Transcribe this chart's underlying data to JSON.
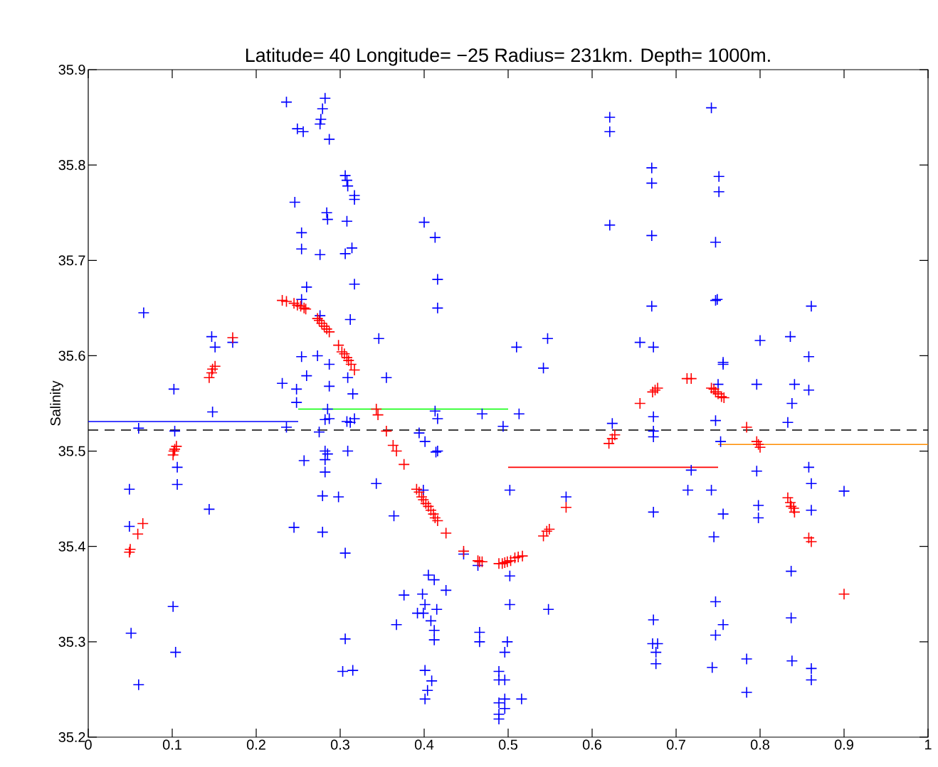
{
  "chart_data": {
    "type": "scatter",
    "title": "Latitude= 40 Longitude= −25 Radius= 231km. Depth= 1000m.",
    "ylabel": "Salinity",
    "xlim": [
      0,
      1
    ],
    "ylim": [
      35.2,
      35.9
    ],
    "xticks": [
      0,
      0.1,
      0.2,
      0.3,
      0.4,
      0.5,
      0.6,
      0.7,
      0.8,
      0.9,
      1
    ],
    "yticks": [
      35.2,
      35.3,
      35.4,
      35.5,
      35.6,
      35.7,
      35.8,
      35.9
    ],
    "marker": "cross",
    "grid": false,
    "ref_lines": [
      {
        "axis": "y",
        "value": 35.522,
        "color": "#000000",
        "line_style": "dashed"
      }
    ],
    "series": [
      {
        "color": "#0000ff",
        "x": [
          0.066,
          0.049,
          0.049,
          0.051,
          0.06,
          0.06,
          0.102,
          0.103,
          0.106,
          0.106,
          0.101,
          0.104,
          0.147,
          0.151,
          0.148,
          0.144,
          0.172,
          0.236,
          0.282,
          0.279,
          0.277,
          0.276,
          0.249,
          0.256,
          0.287,
          0.306,
          0.308,
          0.309,
          0.317,
          0.317,
          0.246,
          0.284,
          0.285,
          0.308,
          0.254,
          0.254,
          0.276,
          0.306,
          0.314,
          0.26,
          0.317,
          0.254,
          0.276,
          0.312,
          0.346,
          0.254,
          0.273,
          0.287,
          0.26,
          0.309,
          0.231,
          0.248,
          0.287,
          0.315,
          0.248,
          0.355,
          0.285,
          0.282,
          0.287,
          0.308,
          0.312,
          0.317,
          0.236,
          0.275,
          0.282,
          0.285,
          0.309,
          0.257,
          0.282,
          0.282,
          0.343,
          0.279,
          0.298,
          0.245,
          0.279,
          0.306,
          0.306,
          0.303,
          0.315,
          0.413,
          0.416,
          0.469,
          0.513,
          0.494,
          0.394,
          0.401,
          0.416,
          0.414,
          0.502,
          0.399,
          0.569,
          0.364,
          0.405,
          0.412,
          0.426,
          0.376,
          0.398,
          0.401,
          0.415,
          0.392,
          0.399,
          0.408,
          0.367,
          0.412,
          0.412,
          0.502,
          0.502,
          0.548,
          0.447,
          0.464,
          0.466,
          0.466,
          0.499,
          0.496,
          0.401,
          0.409,
          0.404,
          0.401,
          0.489,
          0.496,
          0.489,
          0.516,
          0.496,
          0.489,
          0.496,
          0.489,
          0.489,
          0.624,
          0.673,
          0.673,
          0.673,
          0.673,
          0.673,
          0.672,
          0.678,
          0.676,
          0.676,
          0.4,
          0.413,
          0.416,
          0.416,
          0.51,
          0.547,
          0.542,
          0.621,
          0.621,
          0.671,
          0.671,
          0.621,
          0.671,
          0.671,
          0.657,
          0.673,
          0.742,
          0.751,
          0.751,
          0.747,
          0.749,
          0.747,
          0.861,
          0.8,
          0.836,
          0.858,
          0.756,
          0.756,
          0.75,
          0.796,
          0.841,
          0.858,
          0.838,
          0.747,
          0.833,
          0.753,
          0.858,
          0.718,
          0.796,
          0.861,
          0.714,
          0.742,
          0.9,
          0.798,
          0.798,
          0.756,
          0.861,
          0.745,
          0.837,
          0.747,
          0.837,
          0.756,
          0.747,
          0.784,
          0.838,
          0.743,
          0.861,
          0.861,
          0.784
        ],
        "values": [
          35.645,
          35.46,
          35.421,
          35.309,
          35.255,
          35.524,
          35.565,
          35.521,
          35.483,
          35.465,
          35.337,
          35.289,
          35.62,
          35.609,
          35.541,
          35.439,
          35.614,
          35.866,
          35.87,
          35.859,
          35.848,
          35.843,
          35.838,
          35.835,
          35.827,
          35.789,
          35.784,
          35.778,
          35.768,
          35.764,
          35.761,
          35.75,
          35.743,
          35.741,
          35.729,
          35.712,
          35.706,
          35.707,
          35.713,
          35.672,
          35.675,
          35.659,
          35.642,
          35.638,
          35.618,
          35.599,
          35.6,
          35.591,
          35.579,
          35.577,
          35.571,
          35.565,
          35.568,
          35.56,
          35.551,
          35.577,
          35.544,
          35.533,
          35.534,
          35.531,
          35.53,
          35.534,
          35.525,
          35.52,
          35.5,
          35.497,
          35.5,
          35.49,
          35.491,
          35.478,
          35.466,
          35.453,
          35.452,
          35.42,
          35.415,
          35.393,
          35.303,
          35.269,
          35.27,
          35.542,
          35.534,
          35.539,
          35.539,
          35.526,
          35.519,
          35.51,
          35.5,
          35.499,
          35.459,
          35.459,
          35.452,
          35.432,
          35.37,
          35.365,
          35.354,
          35.349,
          35.35,
          35.339,
          35.334,
          35.33,
          35.33,
          35.322,
          35.318,
          35.312,
          35.302,
          35.369,
          35.339,
          35.334,
          35.392,
          35.38,
          35.31,
          35.3,
          35.3,
          35.289,
          35.27,
          35.259,
          35.249,
          35.24,
          35.269,
          35.26,
          35.26,
          35.24,
          35.24,
          35.236,
          35.23,
          35.224,
          35.219,
          35.529,
          35.536,
          35.521,
          35.515,
          35.436,
          35.323,
          35.298,
          35.298,
          35.289,
          35.277,
          35.74,
          35.724,
          35.68,
          35.65,
          35.609,
          35.618,
          35.587,
          35.85,
          35.835,
          35.797,
          35.781,
          35.737,
          35.726,
          35.652,
          35.614,
          35.609,
          35.86,
          35.788,
          35.772,
          35.719,
          35.659,
          35.658,
          35.652,
          35.616,
          35.62,
          35.599,
          35.593,
          35.591,
          35.57,
          35.57,
          35.57,
          35.564,
          35.55,
          35.532,
          35.53,
          35.51,
          35.483,
          35.48,
          35.479,
          35.466,
          35.459,
          35.459,
          35.458,
          35.443,
          35.43,
          35.434,
          35.438,
          35.41,
          35.374,
          35.342,
          35.325,
          35.318,
          35.307,
          35.282,
          35.28,
          35.273,
          35.272,
          35.26,
          35.247
        ]
      },
      {
        "color": "#ff0000",
        "x": [
          0.172,
          0.151,
          0.148,
          0.147,
          0.144,
          0.231,
          0.236,
          0.245,
          0.249,
          0.253,
          0.257,
          0.259,
          0.273,
          0.275,
          0.278,
          0.281,
          0.284,
          0.287,
          0.298,
          0.302,
          0.305,
          0.308,
          0.31,
          0.313,
          0.317,
          0.343,
          0.345,
          0.105,
          0.103,
          0.102,
          0.101,
          0.065,
          0.059,
          0.05,
          0.049,
          0.657,
          0.355,
          0.363,
          0.367,
          0.376,
          0.391,
          0.394,
          0.397,
          0.399,
          0.402,
          0.405,
          0.408,
          0.411,
          0.413,
          0.416,
          0.426,
          0.447,
          0.464,
          0.466,
          0.469,
          0.489,
          0.493,
          0.496,
          0.499,
          0.503,
          0.508,
          0.512,
          0.517,
          0.542,
          0.546,
          0.549,
          0.569,
          0.62,
          0.624,
          0.627,
          0.672,
          0.675,
          0.678,
          0.713,
          0.718,
          0.742,
          0.745,
          0.747,
          0.75,
          0.754,
          0.757,
          0.784,
          0.796,
          0.798,
          0.8,
          0.833,
          0.836,
          0.837,
          0.84,
          0.841,
          0.858,
          0.861,
          0.9
        ],
        "values": [
          35.619,
          35.589,
          35.586,
          35.582,
          35.577,
          35.658,
          35.657,
          35.655,
          35.653,
          35.652,
          35.65,
          35.649,
          35.639,
          35.637,
          35.634,
          35.631,
          35.628,
          35.625,
          35.611,
          35.604,
          35.602,
          35.598,
          35.595,
          35.591,
          35.585,
          35.544,
          35.538,
          35.505,
          35.502,
          35.5,
          35.496,
          35.424,
          35.413,
          35.397,
          35.394,
          35.55,
          35.521,
          35.506,
          35.5,
          35.486,
          35.46,
          35.457,
          35.452,
          35.449,
          35.445,
          35.442,
          35.438,
          35.434,
          35.43,
          35.427,
          35.414,
          35.395,
          35.385,
          35.384,
          35.384,
          35.382,
          35.382,
          35.383,
          35.384,
          35.385,
          35.388,
          35.389,
          35.39,
          35.411,
          35.416,
          35.418,
          35.441,
          35.508,
          35.513,
          35.517,
          35.562,
          35.564,
          35.566,
          35.576,
          35.576,
          35.566,
          35.565,
          35.562,
          35.56,
          35.557,
          35.556,
          35.525,
          35.51,
          35.507,
          35.504,
          35.451,
          35.446,
          35.442,
          35.44,
          35.436,
          35.409,
          35.405,
          35.35
        ]
      },
      {
        "type": "line",
        "marker": "none",
        "color": "#0000ff",
        "x": [
          0,
          0.25
        ],
        "values": [
          35.531,
          35.531
        ]
      },
      {
        "type": "line",
        "marker": "none",
        "color": "#00ff00",
        "x": [
          0.25,
          0.5
        ],
        "values": [
          35.544,
          35.544
        ]
      },
      {
        "type": "line",
        "marker": "none",
        "color": "#ff0000",
        "x": [
          0.5,
          0.75
        ],
        "values": [
          35.483,
          35.483
        ]
      },
      {
        "type": "line",
        "marker": "none",
        "color": "#ff8c00",
        "x": [
          0.75,
          1
        ],
        "values": [
          35.507,
          35.507
        ]
      }
    ]
  }
}
